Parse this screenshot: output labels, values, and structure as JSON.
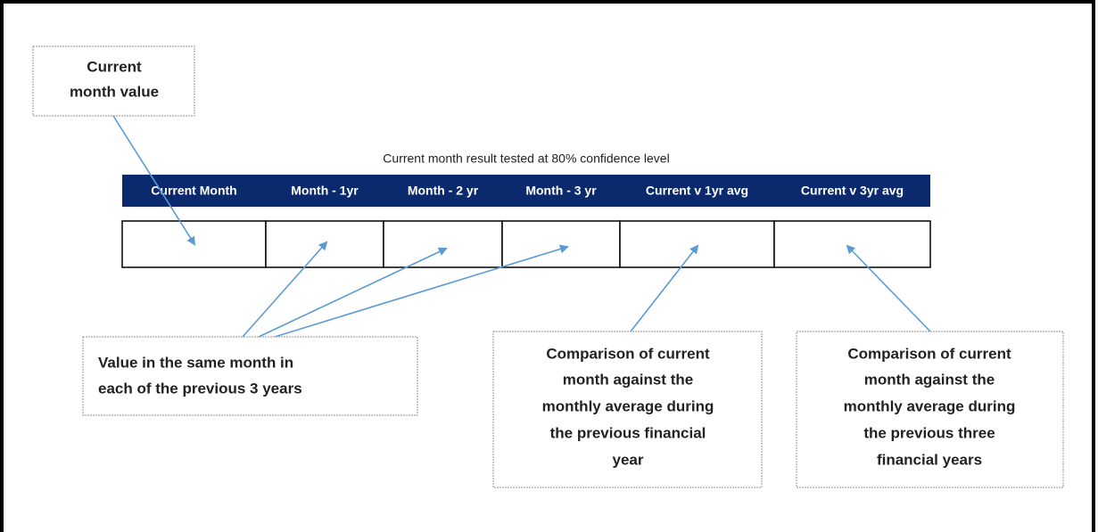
{
  "callouts": [
    {
      "lines": [
        "Current",
        "month value"
      ]
    },
    {
      "lines": [
        "Value in the same month in",
        "each of the previous 3 years"
      ]
    },
    {
      "lines": [
        "Comparison of current",
        "month against  the",
        "monthly average during",
        "the previous financial",
        "year"
      ]
    },
    {
      "lines": [
        "Comparison of current",
        "month against  the",
        "monthly average during",
        "the previous three",
        "financial  years"
      ]
    }
  ],
  "table": {
    "caption": "Current month result tested at 80% confidence level",
    "headers": [
      "Current Month",
      "Month - 1yr",
      "Month - 2 yr",
      "Month - 3 yr",
      "Current v 1yr avg",
      "Current v 3yr avg"
    ]
  }
}
